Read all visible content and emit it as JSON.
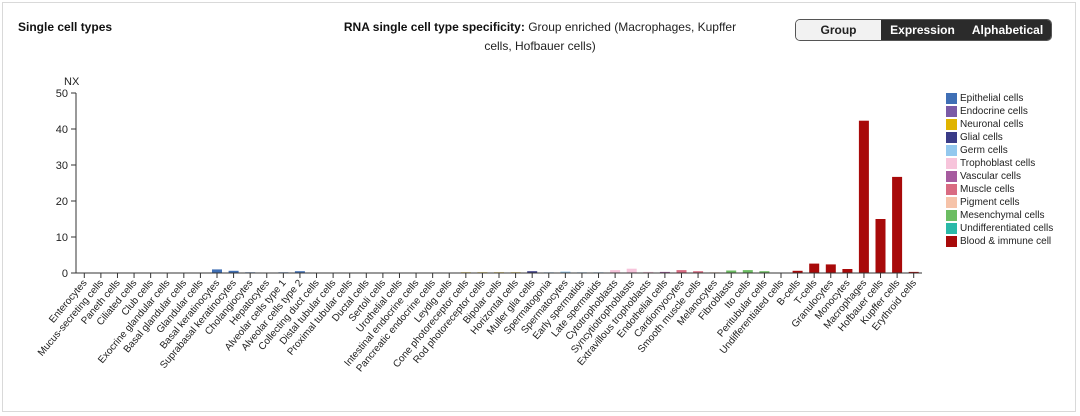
{
  "header": {
    "title": "Single cell types",
    "spec_label": "RNA single cell type specificity:",
    "spec_value": "Group enriched (Macrophages, Kupffer cells, Hofbauer cells)"
  },
  "view_toggle": {
    "selected": "Group",
    "buttons": [
      "Group",
      "Expression",
      "Alphabetical"
    ]
  },
  "colors": {
    "Epithelial cells": "#3f6fb5",
    "Endocrine cells": "#7a5aa6",
    "Neuronal cells": "#e0b400",
    "Glial cells": "#3a3b87",
    "Germ cells": "#93c8ee",
    "Trophoblast cells": "#f7c4db",
    "Vascular cells": "#a65b9f",
    "Muscle cells": "#d96b82",
    "Pigment cells": "#f6c3a9",
    "Mesenchymal cells": "#6cbd62",
    "Undifferentiated cells": "#2bb9a8",
    "Blood & immune cell": "#a80a0a"
  },
  "legend": [
    "Epithelial cells",
    "Endocrine cells",
    "Neuronal cells",
    "Glial cells",
    "Germ cells",
    "Trophoblast cells",
    "Vascular cells",
    "Muscle cells",
    "Pigment cells",
    "Mesenchymal cells",
    "Undifferentiated cells",
    "Blood & immune cell"
  ],
  "chart_data": {
    "type": "bar",
    "ylabel": "NX",
    "ylim": [
      0,
      50
    ],
    "yticks": [
      0,
      10,
      20,
      30,
      40,
      50
    ],
    "grid": false,
    "legend_position": "right",
    "categories": [
      "Enterocytes",
      "Mucus-secreting cells",
      "Paneth cells",
      "Ciliated cells",
      "Club cells",
      "Exocrine glandular cells",
      "Basal glandular cells",
      "Glandular cells",
      "Basal keratinocytes",
      "Suprabasal keratinocytes",
      "Cholangiocytes",
      "Hepatocytes",
      "Alveolar cells type 1",
      "Alveolar cells type 2",
      "Collecting duct cells",
      "Distal tubular cells",
      "Proximal tubular cells",
      "Ductal cells",
      "Sertoli cells",
      "Urothelial cells",
      "Intestinal endocrine cells",
      "Pancreatic endocrine cells",
      "Leydig cells",
      "Cone photoreceptor cells",
      "Rod photoreceptor cells",
      "Bipolar cells",
      "Horizontal cells",
      "Muller glia cells",
      "Spermatogonia",
      "Spermatocytes",
      "Early spermatids",
      "Late spermatids",
      "Cytotrophoblasts",
      "Syncytiotrophoblasts",
      "Extravillous trophoblasts",
      "Endothelial cells",
      "Cardiomyocytes",
      "Smooth muscle cells",
      "Melanocytes",
      "Fibroblasts",
      "Ito cells",
      "Peritubular cells",
      "Undifferentiated cells",
      "B-cells",
      "T-cells",
      "Granulocytes",
      "Monocytes",
      "Macrophages",
      "Hofbauer cells",
      "Kupffer cells",
      "Erythroid cells"
    ],
    "groups": [
      "Epithelial cells",
      "Epithelial cells",
      "Epithelial cells",
      "Epithelial cells",
      "Epithelial cells",
      "Epithelial cells",
      "Epithelial cells",
      "Epithelial cells",
      "Epithelial cells",
      "Epithelial cells",
      "Epithelial cells",
      "Epithelial cells",
      "Epithelial cells",
      "Epithelial cells",
      "Epithelial cells",
      "Epithelial cells",
      "Epithelial cells",
      "Epithelial cells",
      "Epithelial cells",
      "Epithelial cells",
      "Endocrine cells",
      "Endocrine cells",
      "Endocrine cells",
      "Neuronal cells",
      "Neuronal cells",
      "Neuronal cells",
      "Neuronal cells",
      "Glial cells",
      "Germ cells",
      "Germ cells",
      "Germ cells",
      "Germ cells",
      "Trophoblast cells",
      "Trophoblast cells",
      "Trophoblast cells",
      "Vascular cells",
      "Muscle cells",
      "Muscle cells",
      "Pigment cells",
      "Mesenchymal cells",
      "Mesenchymal cells",
      "Mesenchymal cells",
      "Undifferentiated cells",
      "Blood & immune cell",
      "Blood & immune cell",
      "Blood & immune cell",
      "Blood & immune cell",
      "Blood & immune cell",
      "Blood & immune cell",
      "Blood & immune cell",
      "Blood & immune cell"
    ],
    "values": [
      0.1,
      0.1,
      0.1,
      0.1,
      0.1,
      0.1,
      0.1,
      0.1,
      1.0,
      0.6,
      0.2,
      0.1,
      0.2,
      0.5,
      0.1,
      0.1,
      0.1,
      0.1,
      0.1,
      0.1,
      0.1,
      0.1,
      0.1,
      0.2,
      0.2,
      0.2,
      0.2,
      0.5,
      0.2,
      0.4,
      0.2,
      0.2,
      0.8,
      1.2,
      0.3,
      0.3,
      0.8,
      0.5,
      0.2,
      0.7,
      0.8,
      0.5,
      0.1,
      0.6,
      2.6,
      2.4,
      1.1,
      42.3,
      15.0,
      26.7,
      0.3
    ]
  }
}
